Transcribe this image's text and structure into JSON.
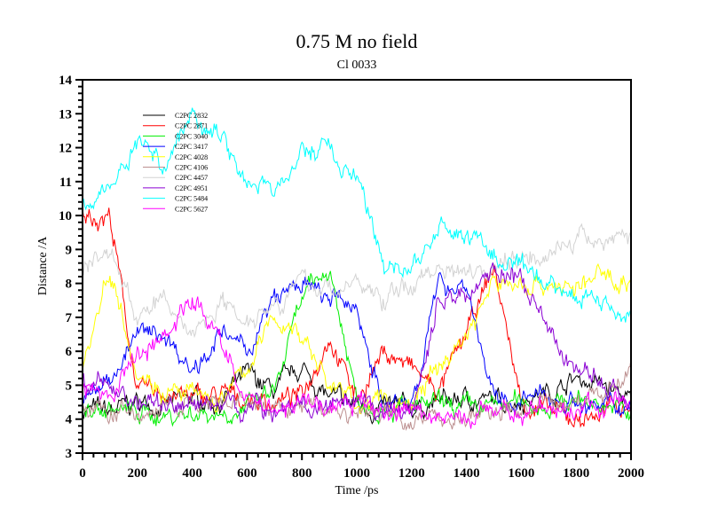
{
  "chart_data": {
    "type": "line",
    "title": "0.75 M no field",
    "subtitle": "Cl 0033",
    "xlabel": "Time /ps",
    "ylabel": "Distance /A",
    "xlim": [
      0,
      2000
    ],
    "ylim": [
      3,
      14
    ],
    "xticks": [
      0,
      200,
      400,
      600,
      800,
      1000,
      1200,
      1400,
      1600,
      1800,
      2000
    ],
    "yticks": [
      3,
      4,
      5,
      6,
      7,
      8,
      9,
      10,
      11,
      12,
      13,
      14
    ],
    "grid": false,
    "legend_position": "top-left",
    "x": [
      0,
      100,
      200,
      300,
      400,
      500,
      600,
      700,
      800,
      900,
      1000,
      1100,
      1200,
      1300,
      1400,
      1500,
      1600,
      1700,
      1800,
      1900,
      2000
    ],
    "series": [
      {
        "name": "C2PC 2832",
        "color": "#000000",
        "values": [
          4.3,
          4.2,
          4.5,
          4.4,
          4.6,
          4.5,
          5.3,
          4.8,
          5.5,
          4.6,
          4.4,
          4.3,
          4.3,
          4.5,
          4.6,
          4.5,
          4.6,
          4.8,
          5.2,
          5.0,
          4.5
        ]
      },
      {
        "name": "C2PC 2871",
        "color": "#ff0000",
        "values": [
          10.0,
          10.0,
          4.8,
          4.8,
          4.6,
          4.7,
          4.6,
          4.5,
          4.7,
          6.5,
          4.6,
          6.0,
          5.5,
          4.8,
          6.5,
          8.5,
          4.5,
          4.2,
          4.0,
          4.2,
          4.5
        ]
      },
      {
        "name": "C2PC 3040",
        "color": "#00ee00",
        "values": [
          4.2,
          4.3,
          4.2,
          4.1,
          4.2,
          4.2,
          4.3,
          4.8,
          7.5,
          8.5,
          4.6,
          4.4,
          4.3,
          4.4,
          4.3,
          4.4,
          4.5,
          4.4,
          4.6,
          4.5,
          4.1
        ]
      },
      {
        "name": "C2PC 3417",
        "color": "#0000ff",
        "values": [
          4.5,
          5.2,
          6.5,
          6.5,
          5.5,
          6.5,
          6.0,
          7.5,
          8.0,
          7.5,
          7.3,
          4.3,
          4.5,
          8.0,
          8.0,
          4.5,
          4.5,
          4.7,
          4.5,
          4.3,
          4.5
        ]
      },
      {
        "name": "C2PC 4028",
        "color": "#ffff00",
        "values": [
          5.5,
          8.5,
          5.5,
          4.8,
          4.7,
          4.5,
          5.5,
          7.0,
          6.5,
          5.0,
          4.5,
          4.5,
          4.5,
          5.5,
          6.5,
          8.0,
          8.0,
          8.0,
          7.8,
          8.3,
          8.0
        ]
      },
      {
        "name": "C2PC 4106",
        "color": "#bc8f8f",
        "values": [
          4.3,
          4.2,
          4.1,
          4.3,
          4.4,
          4.3,
          4.5,
          4.2,
          4.4,
          4.3,
          4.1,
          4.2,
          4.0,
          4.1,
          4.0,
          4.2,
          4.3,
          4.4,
          4.5,
          4.8,
          5.5
        ]
      },
      {
        "name": "C2PC 4457",
        "color": "#d3d3d3",
        "values": [
          8.5,
          9.0,
          7.0,
          7.5,
          6.5,
          7.5,
          7.0,
          7.5,
          8.0,
          7.8,
          8.0,
          7.5,
          8.0,
          8.5,
          8.5,
          8.5,
          8.8,
          9.0,
          9.2,
          9.3,
          9.5
        ]
      },
      {
        "name": "C2PC 4951",
        "color": "#8b00d3",
        "values": [
          5.0,
          5.0,
          4.5,
          4.5,
          4.4,
          4.5,
          4.4,
          4.3,
          4.4,
          4.3,
          4.3,
          4.2,
          4.2,
          7.5,
          7.7,
          8.5,
          8.0,
          6.5,
          5.5,
          5.0,
          4.5
        ]
      },
      {
        "name": "C2PC 5484",
        "color": "#00ffff",
        "values": [
          10.5,
          10.8,
          12.2,
          11.5,
          13.0,
          12.5,
          11.0,
          10.7,
          11.8,
          12.0,
          11.0,
          8.5,
          8.5,
          9.5,
          9.5,
          8.8,
          8.3,
          8.0,
          7.7,
          7.5,
          7.0
        ]
      },
      {
        "name": "C2PC 5627",
        "color": "#ff00ff",
        "values": [
          5.0,
          4.5,
          6.0,
          6.5,
          7.5,
          6.5,
          4.5,
          4.4,
          4.5,
          4.3,
          4.4,
          4.3,
          4.2,
          4.1,
          4.0,
          4.2,
          4.3,
          4.2,
          4.3,
          4.4,
          4.5
        ]
      }
    ]
  }
}
